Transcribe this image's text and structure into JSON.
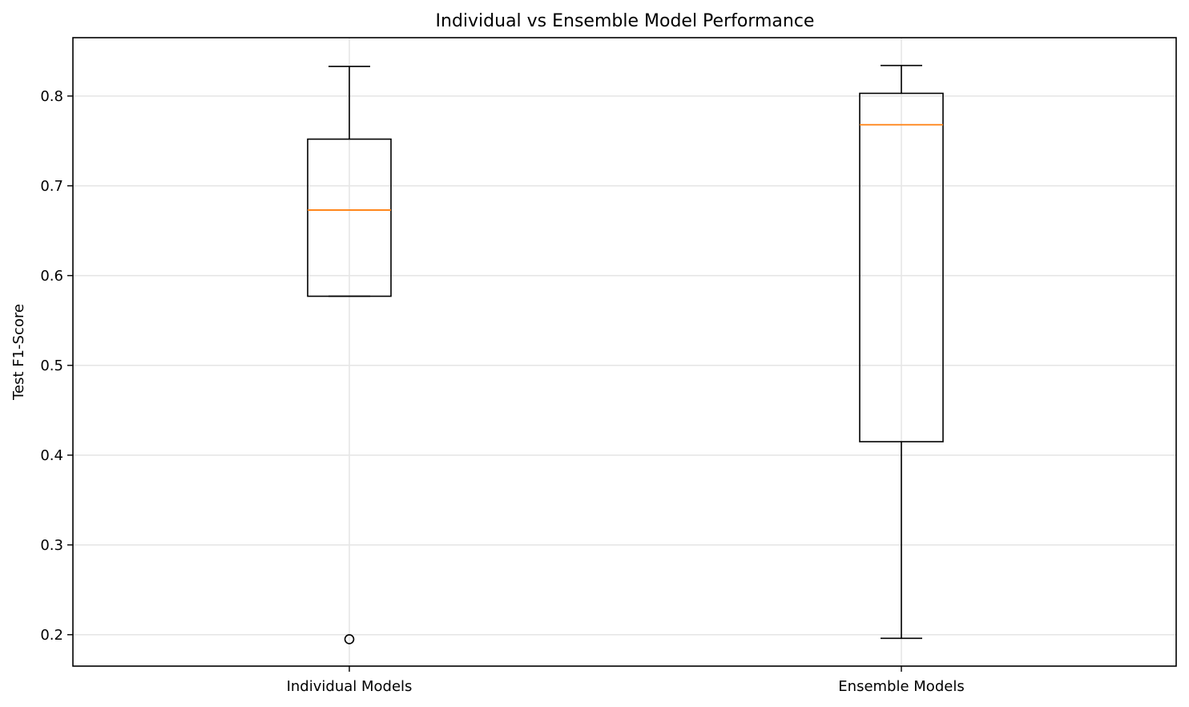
{
  "chart_data": {
    "type": "box",
    "title": "Individual vs Ensemble Model Performance",
    "xlabel": "",
    "ylabel": "Test F1-Score",
    "ylim": [
      0.165,
      0.865
    ],
    "yticks": [
      0.2,
      0.3,
      0.4,
      0.5,
      0.6,
      0.7,
      0.8
    ],
    "ytick_labels": [
      "0.2",
      "0.3",
      "0.4",
      "0.5",
      "0.6",
      "0.7",
      "0.8"
    ],
    "categories": [
      "Individual Models",
      "Ensemble Models"
    ],
    "grid": true,
    "series": [
      {
        "whisker_low": 0.577,
        "q1": 0.577,
        "median": 0.673,
        "q3": 0.752,
        "whisker_high": 0.833,
        "outliers": [
          0.195
        ]
      },
      {
        "whisker_low": 0.196,
        "q1": 0.415,
        "median": 0.768,
        "q3": 0.803,
        "whisker_high": 0.834,
        "outliers": []
      }
    ],
    "colors": {
      "box": "#000000",
      "median": "#ff7f0e",
      "grid": "#e6e6e6",
      "axes": "#000000"
    }
  }
}
